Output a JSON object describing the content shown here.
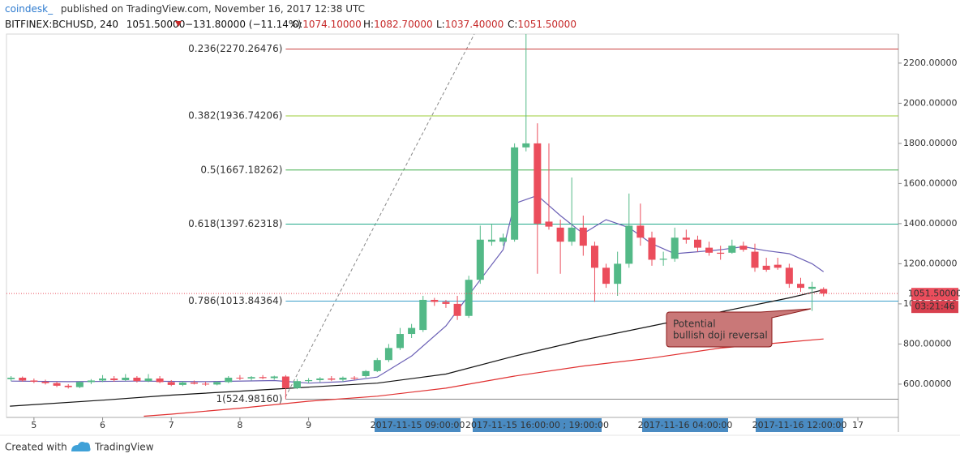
{
  "header": {
    "author": "coindesk_",
    "published": "published on TradingView.com, November 16, 2017 12:38 UTC",
    "symbol": "BITFINEX:BCHUSD, 240",
    "last": "1051.50000",
    "change": "−131.80000 (−11.14%)",
    "ohlc": [
      {
        "key": "O:",
        "value": "1074.10000"
      },
      {
        "key": "H:",
        "value": "1082.70000"
      },
      {
        "key": "L:",
        "value": "1037.40000"
      },
      {
        "key": "C:",
        "value": "1051.50000"
      }
    ]
  },
  "footer": {
    "created": "Created with",
    "brand": "TradingView"
  },
  "chart_data": {
    "type": "candlestick",
    "up_color": "#53b987",
    "down_color": "#eb4d5c",
    "xlim": [
      4.6,
      17.59
    ],
    "xticks": [
      5,
      6,
      7,
      8,
      9,
      17
    ],
    "ylim": [
      434,
      2345
    ],
    "yticks": [
      {
        "value": 600,
        "label": "600.00000"
      },
      {
        "value": 800,
        "label": "800.00000"
      },
      {
        "value": 1000,
        "label": "1000.00000"
      },
      {
        "value": 1200,
        "label": "1200.00000"
      },
      {
        "value": 1400,
        "label": "1400.00000"
      },
      {
        "value": 1600,
        "label": "1600.00000"
      },
      {
        "value": 1800,
        "label": "1800.00000"
      },
      {
        "value": 2000,
        "label": "2000.00000"
      },
      {
        "value": 2200,
        "label": "2200.00000"
      }
    ],
    "x": [
      4.667,
      4.833,
      5,
      5.167,
      5.333,
      5.5,
      5.667,
      5.833,
      6,
      6.167,
      6.333,
      6.5,
      6.667,
      6.833,
      7,
      7.167,
      7.333,
      7.5,
      7.667,
      7.833,
      8,
      8.167,
      8.333,
      8.5,
      8.667,
      8.833,
      9,
      9.167,
      9.333,
      9.5,
      9.667,
      9.833,
      10,
      10.167,
      10.333,
      10.5,
      10.667,
      10.833,
      11,
      11.167,
      11.333,
      11.5,
      11.667,
      11.833,
      12,
      12.167,
      12.333,
      12.5,
      12.667,
      12.833,
      13,
      13.167,
      13.333,
      13.5,
      13.667,
      13.833,
      14,
      14.167,
      14.333,
      14.5,
      14.667,
      14.833,
      15,
      15.167,
      15.333,
      15.5,
      15.667,
      15.833,
      16,
      16.167,
      16.333,
      16.5
    ],
    "candles": [
      [
        625,
        640,
        615,
        632
      ],
      [
        632,
        638,
        612,
        618
      ],
      [
        618,
        628,
        605,
        612
      ],
      [
        612,
        622,
        598,
        605
      ],
      [
        605,
        612,
        585,
        592
      ],
      [
        592,
        600,
        578,
        585
      ],
      [
        585,
        615,
        580,
        610
      ],
      [
        610,
        625,
        600,
        618
      ],
      [
        618,
        645,
        610,
        628
      ],
      [
        628,
        640,
        612,
        620
      ],
      [
        620,
        650,
        615,
        632
      ],
      [
        632,
        640,
        608,
        615
      ],
      [
        615,
        650,
        610,
        628
      ],
      [
        628,
        640,
        605,
        610
      ],
      [
        610,
        620,
        590,
        596
      ],
      [
        596,
        615,
        590,
        608
      ],
      [
        608,
        618,
        598,
        602
      ],
      [
        602,
        612,
        592,
        598
      ],
      [
        598,
        615,
        594,
        610
      ],
      [
        610,
        640,
        605,
        632
      ],
      [
        632,
        645,
        620,
        628
      ],
      [
        628,
        640,
        618,
        635
      ],
      [
        635,
        645,
        625,
        630
      ],
      [
        630,
        642,
        622,
        638
      ],
      [
        638,
        645,
        525,
        580
      ],
      [
        580,
        625,
        575,
        615
      ],
      [
        615,
        630,
        605,
        620
      ],
      [
        620,
        635,
        610,
        628
      ],
      [
        628,
        640,
        615,
        622
      ],
      [
        622,
        638,
        612,
        632
      ],
      [
        632,
        640,
        620,
        628
      ],
      [
        640,
        670,
        632,
        665
      ],
      [
        665,
        730,
        660,
        720
      ],
      [
        720,
        800,
        710,
        780
      ],
      [
        780,
        880,
        770,
        850
      ],
      [
        850,
        900,
        830,
        880
      ],
      [
        870,
        1040,
        860,
        1020
      ],
      [
        1020,
        1030,
        990,
        1010
      ],
      [
        1010,
        1020,
        980,
        1000
      ],
      [
        1000,
        1040,
        920,
        940
      ],
      [
        940,
        1140,
        930,
        1120
      ],
      [
        1120,
        1390,
        1100,
        1320
      ],
      [
        1310,
        1400,
        1290,
        1320
      ],
      [
        1310,
        1350,
        1290,
        1330
      ],
      [
        1320,
        1800,
        1310,
        1780
      ],
      [
        1780,
        2478,
        1760,
        1800
      ],
      [
        1800,
        1900,
        1150,
        1400
      ],
      [
        1410,
        1800,
        1370,
        1385
      ],
      [
        1380,
        1420,
        1150,
        1310
      ],
      [
        1310,
        1630,
        1290,
        1380
      ],
      [
        1380,
        1440,
        1240,
        1290
      ],
      [
        1290,
        1310,
        1010,
        1180
      ],
      [
        1180,
        1200,
        1080,
        1100
      ],
      [
        1100,
        1260,
        1040,
        1200
      ],
      [
        1200,
        1550,
        1180,
        1390
      ],
      [
        1390,
        1500,
        1290,
        1330
      ],
      [
        1330,
        1360,
        1190,
        1220
      ],
      [
        1220,
        1260,
        1190,
        1225
      ],
      [
        1225,
        1380,
        1210,
        1330
      ],
      [
        1330,
        1370,
        1300,
        1320
      ],
      [
        1320,
        1340,
        1260,
        1280
      ],
      [
        1280,
        1310,
        1240,
        1255
      ],
      [
        1255,
        1290,
        1220,
        1250
      ],
      [
        1255,
        1320,
        1250,
        1290
      ],
      [
        1290,
        1310,
        1260,
        1270
      ],
      [
        1260,
        1300,
        1160,
        1180
      ],
      [
        1190,
        1230,
        1160,
        1170
      ],
      [
        1195,
        1230,
        1170,
        1180
      ],
      [
        1180,
        1200,
        1080,
        1100
      ],
      [
        1100,
        1130,
        1060,
        1080
      ],
      [
        1075,
        1110,
        965,
        1085
      ],
      [
        1074.1,
        1082.7,
        1037.4,
        1051.5
      ]
    ],
    "series": [
      {
        "color": "#6a5fb5",
        "x": [
          4.667,
          5.5,
          6.5,
          7.5,
          8.5,
          9,
          9.5,
          10,
          10.5,
          11,
          11.5,
          11.833,
          12,
          12.333,
          12.667,
          13,
          13.333,
          13.667,
          14,
          14.333,
          14.667,
          15,
          15.333,
          15.667,
          16,
          16.333,
          16.5
        ],
        "values": [
          615,
          612,
          615,
          612,
          618,
          605,
          612,
          635,
          740,
          890,
          1120,
          1270,
          1500,
          1540,
          1440,
          1350,
          1420,
          1380,
          1300,
          1250,
          1260,
          1270,
          1285,
          1265,
          1250,
          1200,
          1160
        ]
      },
      {
        "color": "#111111",
        "x": [
          4.65,
          6,
          7,
          8,
          9,
          10,
          11,
          12,
          13,
          14,
          15,
          16,
          16.5
        ],
        "values": [
          490,
          520,
          545,
          565,
          585,
          605,
          650,
          740,
          820,
          890,
          960,
          1030,
          1070
        ]
      },
      {
        "color": "#e03030",
        "x": [
          6.6,
          7,
          8,
          9,
          10,
          11,
          12,
          13,
          14,
          15,
          16,
          16.5
        ],
        "values": [
          440,
          450,
          480,
          515,
          540,
          580,
          640,
          690,
          730,
          780,
          810,
          825
        ]
      }
    ],
    "fib": {
      "start": 8.667,
      "levels": [
        {
          "label": "0.236(2270.26476)",
          "value": 2270.26476,
          "color": "#c9403f"
        },
        {
          "label": "0.382(1936.74206)",
          "value": 1936.74206,
          "color": "#9ccc3a"
        },
        {
          "label": "0.5(1667.18262)",
          "value": 1667.18262,
          "color": "#3fae49"
        },
        {
          "label": "0.618(1397.62318)",
          "value": 1397.62318,
          "color": "#22a98a"
        },
        {
          "label": "0.786(1013.84364)",
          "value": 1013.84364,
          "color": "#3a9fc9"
        },
        {
          "label": "1(524.98160)",
          "value": 524.9816,
          "color": "#888888"
        }
      ]
    },
    "x_highlights": [
      "2017-11-15 09:00:00",
      "2017-11-15 16:00:00 ; 19:00:00",
      "2017-11-16 04:00:00",
      "2017-11-16 12:00:00"
    ],
    "last_price_label": "1051.50000",
    "countdown": "03:21:46",
    "annotation": [
      "Potential",
      "bullish doji reversal"
    ]
  }
}
